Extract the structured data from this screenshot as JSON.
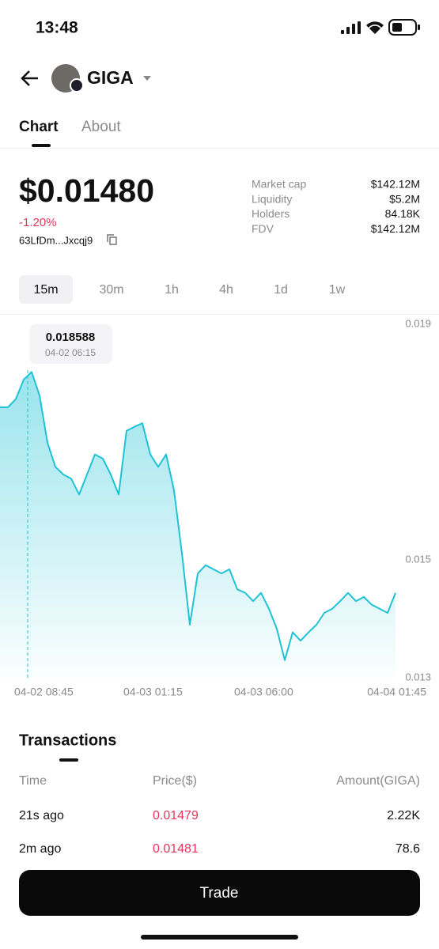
{
  "status_bar": {
    "time": "13:48"
  },
  "header": {
    "token": "GIGA"
  },
  "tabs": [
    "Chart",
    "About"
  ],
  "price": {
    "value": "$0.01480",
    "change": "-1.20%",
    "address": "63LfDm...Jxcqj9"
  },
  "stats": [
    {
      "label": "Market cap",
      "value": "$142.12M"
    },
    {
      "label": "Liquidity",
      "value": "$5.2M"
    },
    {
      "label": "Holders",
      "value": "84.18K"
    },
    {
      "label": "FDV",
      "value": "$142.12M"
    }
  ],
  "ranges": [
    "15m",
    "30m",
    "1h",
    "4h",
    "1d",
    "1w"
  ],
  "chart_data": {
    "type": "area",
    "color": "#1ec3d6",
    "values": [
      0.01759,
      0.01759,
      0.01773,
      0.01806,
      0.01819,
      0.01779,
      0.01699,
      0.01658,
      0.01645,
      0.01638,
      0.01611,
      0.01645,
      0.01679,
      0.01672,
      0.01645,
      0.01611,
      0.01719,
      0.01726,
      0.01732,
      0.01679,
      0.01658,
      0.01679,
      0.01618,
      0.01511,
      0.0139,
      0.01477,
      0.01491,
      0.01484,
      0.01477,
      0.01484,
      0.0145,
      0.01444,
      0.0143,
      0.01444,
      0.01417,
      0.01383,
      0.0133,
      0.01377,
      0.01363,
      0.01377,
      0.0139,
      0.0141,
      0.01417,
      0.0143,
      0.01444,
      0.0143,
      0.01437,
      0.01424,
      0.01417,
      0.0141,
      0.01444
    ],
    "ylim": [
      0.013,
      0.019
    ],
    "yticks": [
      0.019,
      0.015,
      0.013
    ],
    "x_labels": [
      "04-02 08:45",
      "04-03 01:15",
      "04-03 06:00",
      "04-04 01:45"
    ],
    "tooltip": {
      "value": 0.018588,
      "time": "04-02 06:15"
    }
  },
  "transactions": {
    "title": "Transactions",
    "columns": [
      "Time",
      "Price($)",
      "Amount(GIGA)"
    ],
    "rows": [
      [
        "21s ago",
        "0.01479",
        "2.22K"
      ],
      [
        "2m ago",
        "0.01481",
        "78.6"
      ]
    ]
  },
  "button": "Trade"
}
